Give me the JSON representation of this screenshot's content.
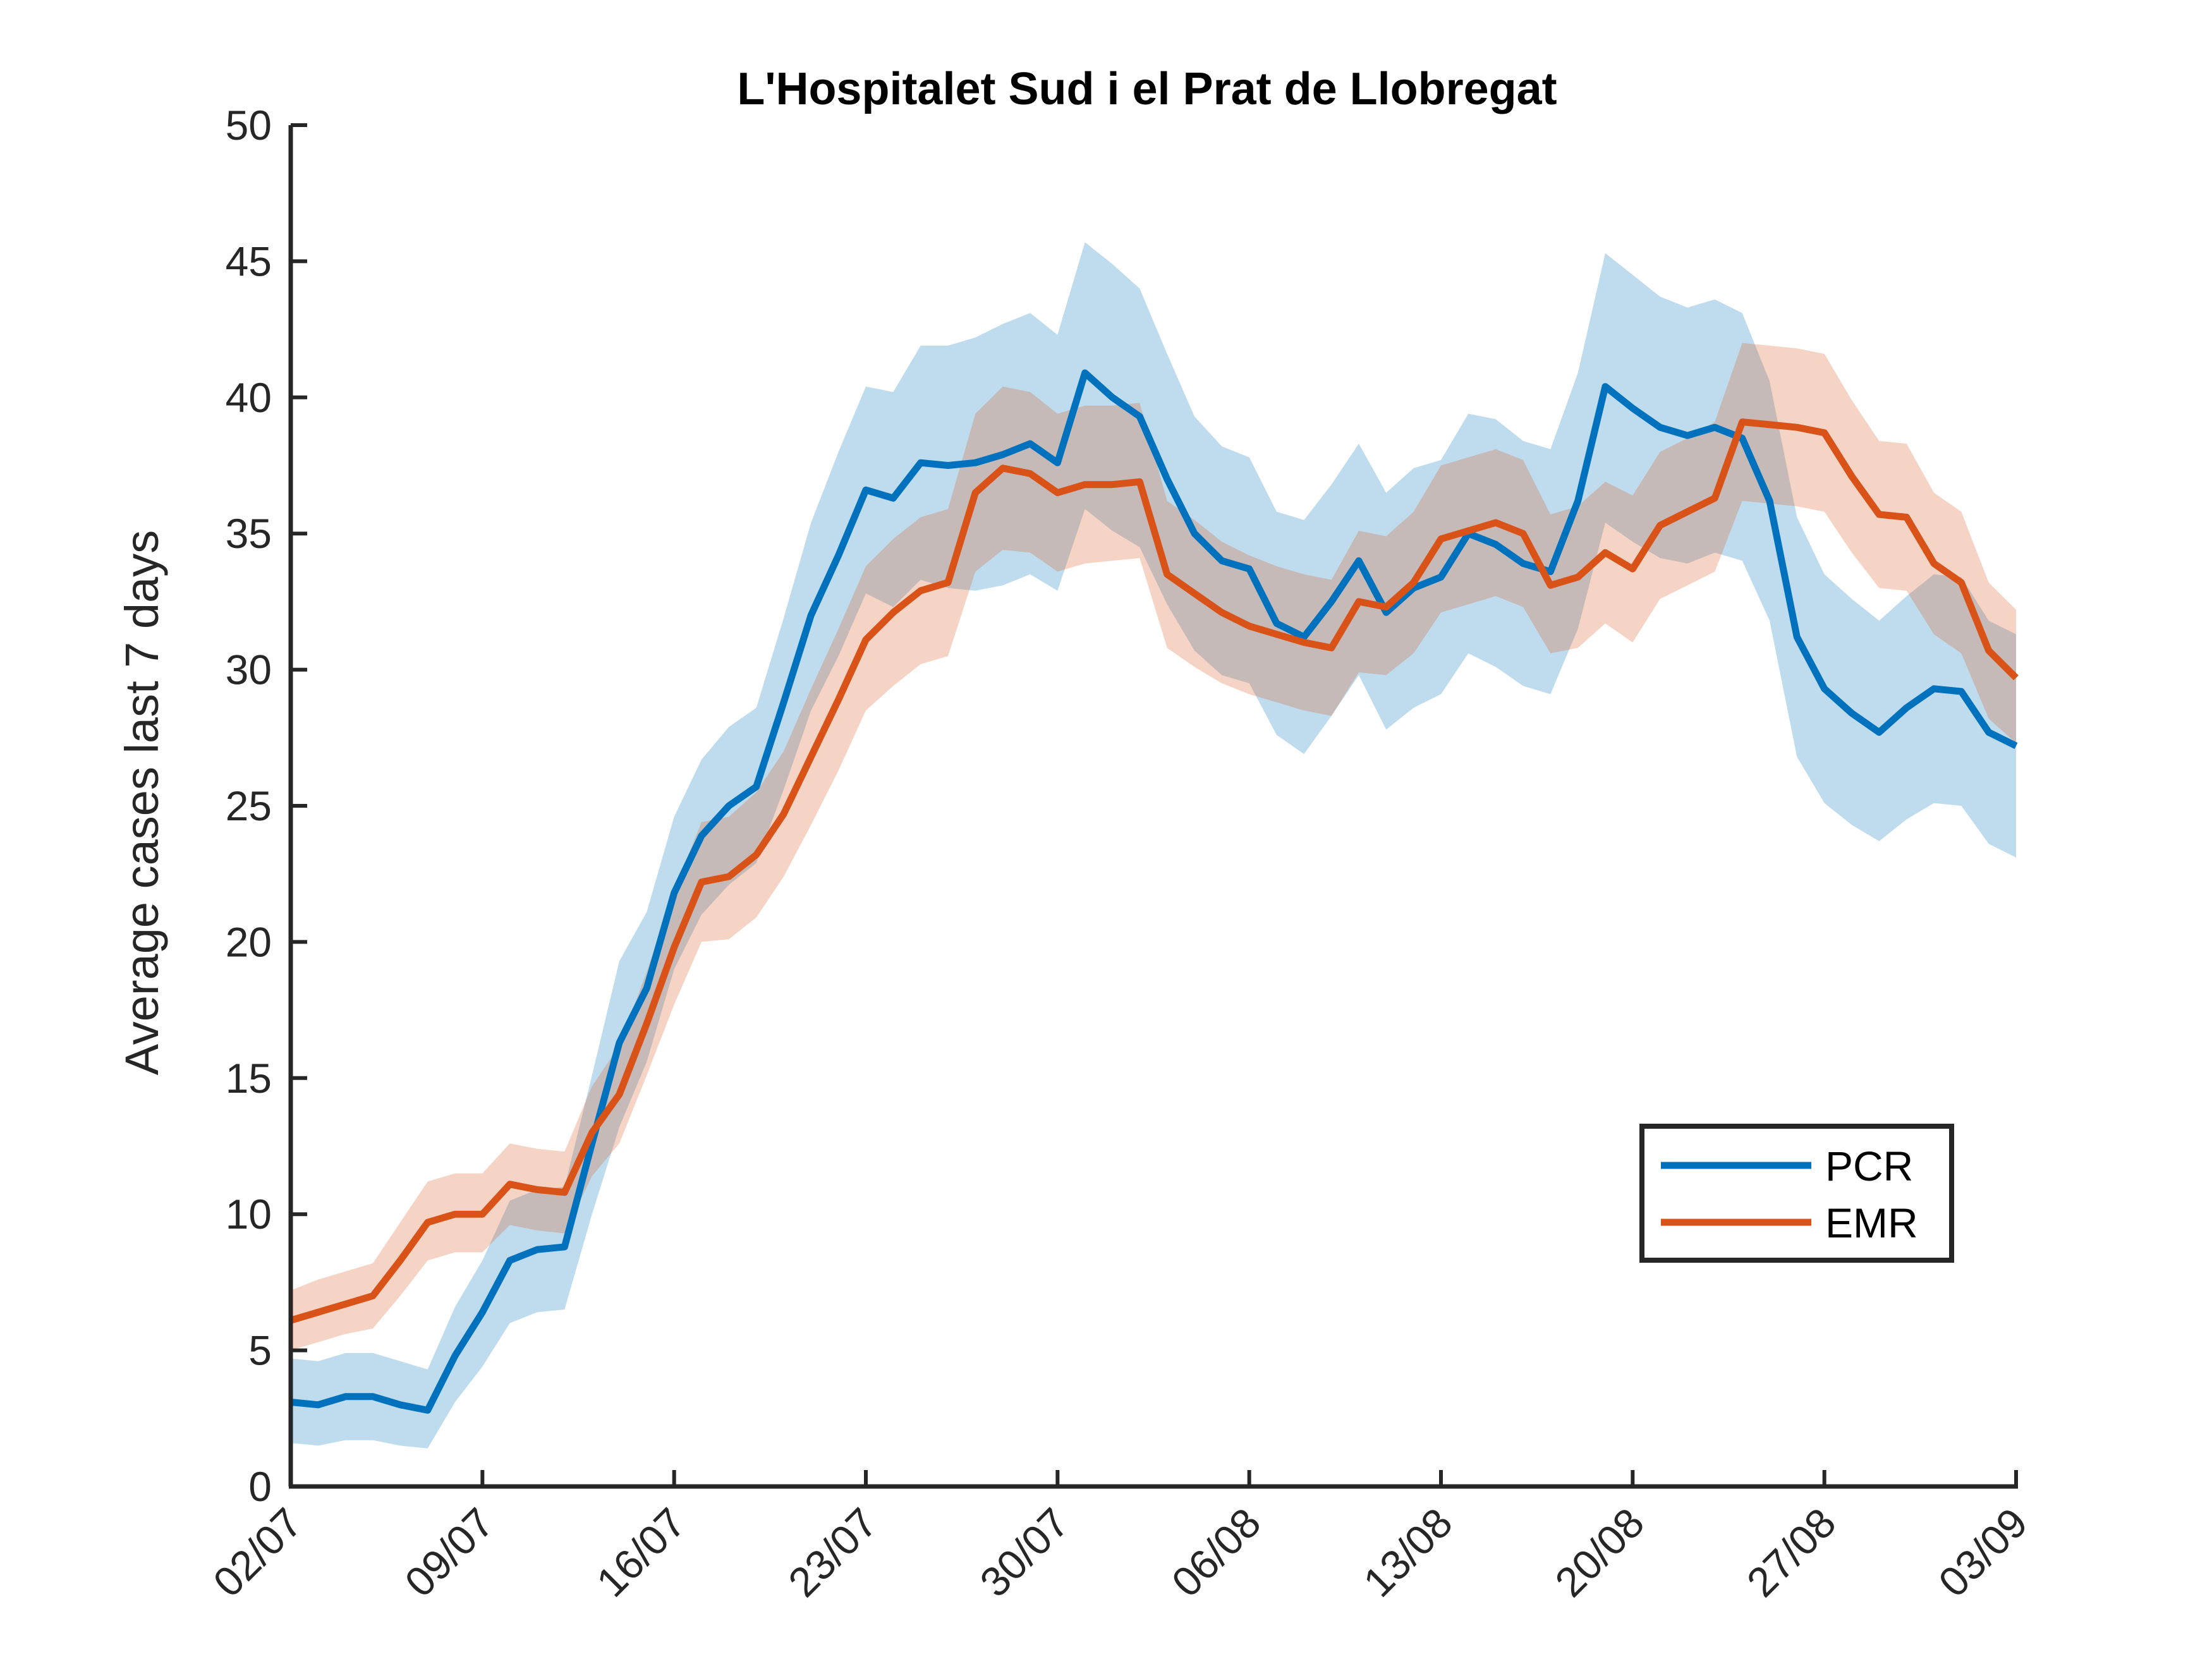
{
  "chart_data": {
    "type": "line",
    "title": "L'Hospitalet Sud i el Prat de Llobregat",
    "xlabel": "",
    "ylabel": "Average cases last 7 days",
    "ylim": [
      0,
      50
    ],
    "yticks": [
      "0",
      "5",
      "10",
      "15",
      "20",
      "25",
      "30",
      "35",
      "40",
      "45",
      "50"
    ],
    "xticks": [
      "02/07",
      "09/07",
      "16/07",
      "23/07",
      "30/07",
      "06/08",
      "13/08",
      "20/08",
      "27/08",
      "03/09"
    ],
    "x_start": "02/07",
    "x_end": "03/09",
    "grid": false,
    "legend": {
      "position": "lower-right",
      "entries": [
        "PCR",
        "EMR"
      ]
    },
    "series": [
      {
        "name": "PCR",
        "color": "#0072BD",
        "band_color": "#0072BD",
        "values": [
          3.1,
          3.0,
          3.3,
          3.3,
          3.0,
          2.8,
          4.8,
          6.4,
          8.3,
          8.7,
          8.8,
          12.6,
          16.3,
          18.3,
          21.8,
          23.9,
          25.0,
          25.7,
          28.8,
          32.0,
          34.2,
          36.6,
          36.3,
          37.6,
          37.5,
          37.6,
          37.9,
          38.3,
          37.6,
          40.9,
          40.0,
          39.3,
          37.0,
          35.0,
          34.0,
          33.7,
          31.7,
          31.2,
          32.5,
          34.0,
          32.1,
          33.0,
          33.4,
          35.0,
          34.6,
          33.9,
          33.6,
          36.2,
          40.4,
          39.6,
          38.9,
          38.6,
          38.9,
          38.5,
          36.2,
          31.2,
          29.3,
          28.4,
          27.7,
          28.6,
          29.3,
          29.2,
          27.7,
          27.2
        ],
        "lower": [
          1.6,
          1.5,
          1.7,
          1.7,
          1.5,
          1.4,
          3.1,
          4.4,
          6.0,
          6.4,
          6.5,
          10.0,
          13.2,
          15.6,
          19.0,
          21.0,
          22.1,
          22.9,
          25.6,
          28.5,
          30.5,
          32.8,
          32.3,
          33.3,
          33.0,
          32.9,
          33.1,
          33.5,
          32.9,
          35.9,
          35.1,
          34.5,
          32.4,
          30.7,
          29.8,
          29.5,
          27.6,
          26.9,
          28.3,
          29.8,
          27.8,
          28.6,
          29.1,
          30.6,
          30.1,
          29.4,
          29.1,
          31.5,
          35.4,
          34.7,
          34.1,
          33.9,
          34.3,
          34.0,
          31.8,
          26.8,
          25.1,
          24.3,
          23.7,
          24.5,
          25.1,
          25.0,
          23.6,
          23.1
        ],
        "upper": [
          4.7,
          4.6,
          4.9,
          4.9,
          4.6,
          4.3,
          6.6,
          8.3,
          10.5,
          10.9,
          11.0,
          15.1,
          19.3,
          21.1,
          24.6,
          26.7,
          27.9,
          28.6,
          31.9,
          35.4,
          38.0,
          40.4,
          40.2,
          41.9,
          41.9,
          42.2,
          42.7,
          43.1,
          42.3,
          45.7,
          44.9,
          44.0,
          41.6,
          39.3,
          38.2,
          37.8,
          35.8,
          35.5,
          36.8,
          38.3,
          36.5,
          37.4,
          37.7,
          39.4,
          39.2,
          38.4,
          38.1,
          40.9,
          45.3,
          44.5,
          43.7,
          43.3,
          43.6,
          43.1,
          40.6,
          35.6,
          33.5,
          32.6,
          31.8,
          32.7,
          33.5,
          33.4,
          31.8,
          31.3
        ]
      },
      {
        "name": "EMR",
        "color": "#D95319",
        "band_color": "#D95319",
        "values": [
          6.1,
          6.4,
          6.7,
          7.0,
          8.3,
          9.7,
          10.0,
          10.0,
          11.1,
          10.9,
          10.8,
          13.0,
          14.4,
          17.0,
          19.8,
          22.2,
          22.4,
          23.2,
          24.7,
          26.8,
          28.9,
          31.1,
          32.1,
          32.9,
          33.2,
          36.5,
          37.4,
          37.2,
          36.5,
          36.8,
          36.8,
          36.9,
          33.5,
          32.8,
          32.1,
          31.6,
          31.3,
          31.0,
          30.8,
          32.5,
          32.3,
          33.2,
          34.8,
          35.1,
          35.4,
          35.0,
          33.1,
          33.4,
          34.3,
          33.7,
          35.3,
          35.8,
          36.3,
          39.1,
          39.0,
          38.9,
          38.7,
          37.1,
          35.7,
          35.6,
          33.9,
          33.2,
          30.7,
          29.7
        ],
        "lower": [
          5.0,
          5.3,
          5.6,
          5.8,
          7.0,
          8.3,
          8.6,
          8.6,
          9.6,
          9.4,
          9.3,
          11.4,
          12.6,
          15.1,
          17.7,
          20.0,
          20.1,
          20.9,
          22.4,
          24.3,
          26.3,
          28.5,
          29.4,
          30.2,
          30.5,
          33.6,
          34.4,
          34.3,
          33.6,
          33.9,
          34.0,
          34.1,
          30.8,
          30.1,
          29.5,
          29.1,
          28.8,
          28.5,
          28.3,
          29.9,
          29.8,
          30.6,
          32.1,
          32.4,
          32.7,
          32.3,
          30.6,
          30.8,
          31.7,
          31.0,
          32.6,
          33.1,
          33.6,
          36.2,
          36.1,
          36.0,
          35.8,
          34.3,
          33.0,
          32.9,
          31.3,
          30.6,
          28.2,
          27.3
        ],
        "upper": [
          7.2,
          7.6,
          7.9,
          8.2,
          9.7,
          11.2,
          11.5,
          11.5,
          12.6,
          12.4,
          12.3,
          14.7,
          16.2,
          18.9,
          21.9,
          24.4,
          24.6,
          25.5,
          27.0,
          29.3,
          31.5,
          33.8,
          34.8,
          35.6,
          35.9,
          39.4,
          40.4,
          40.2,
          39.4,
          39.7,
          39.7,
          39.8,
          36.2,
          35.5,
          34.7,
          34.2,
          33.8,
          33.5,
          33.3,
          35.1,
          34.9,
          35.8,
          37.5,
          37.8,
          38.1,
          37.7,
          35.7,
          36.0,
          36.9,
          36.4,
          38.0,
          38.5,
          39.1,
          42.0,
          41.9,
          41.8,
          41.6,
          39.9,
          38.4,
          38.3,
          36.5,
          35.8,
          33.2,
          32.2
        ]
      }
    ]
  }
}
